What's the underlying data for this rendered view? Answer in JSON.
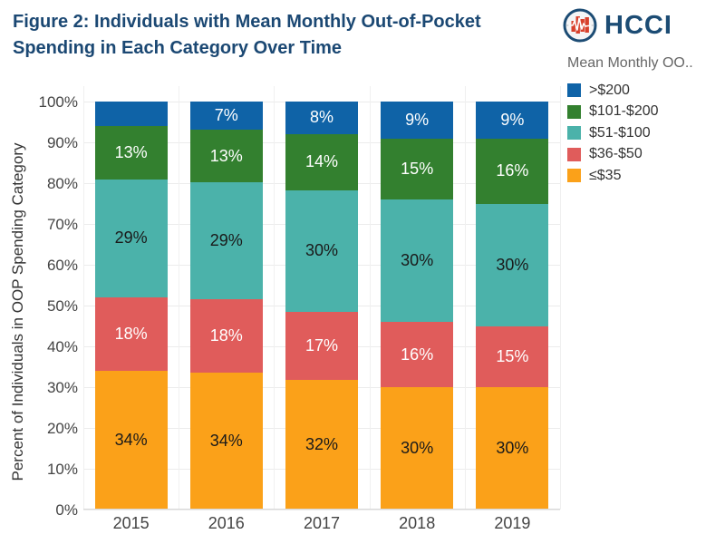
{
  "header": {
    "title_line1": "Figure 2: Individuals with Mean Monthly Out-of-Pocket",
    "title_line2": "Spending in Each Category Over Time",
    "logo_text": "HCCI"
  },
  "legend": {
    "title": "Mean Monthly OO..",
    "items": [
      {
        "label": ">$200",
        "color": "#0F63A7"
      },
      {
        "label": "$101-$200",
        "color": "#33802F"
      },
      {
        "label": "$51-$100",
        "color": "#4BB2AA"
      },
      {
        "label": "$36-$50",
        "color": "#E05C5B"
      },
      {
        "label": "≤$35",
        "color": "#FBA119"
      }
    ]
  },
  "chart_data": {
    "type": "bar",
    "stacked": true,
    "title": "Figure 2: Individuals with Mean Monthly Out-of-Pocket Spending in Each Category Over Time",
    "categories": [
      "2015",
      "2016",
      "2017",
      "2018",
      "2019"
    ],
    "series": [
      {
        "name": "≤$35",
        "color": "#FBA119",
        "label_color": "#1a1a1a",
        "values": [
          34,
          34,
          32,
          30,
          30
        ],
        "labels": [
          "34%",
          "34%",
          "32%",
          "30%",
          "30%"
        ]
      },
      {
        "name": "$36-$50",
        "color": "#E05C5B",
        "label_color": "#ffffff",
        "values": [
          18,
          18,
          17,
          16,
          15
        ],
        "labels": [
          "18%",
          "18%",
          "17%",
          "16%",
          "15%"
        ]
      },
      {
        "name": "$51-$100",
        "color": "#4BB2AA",
        "label_color": "#1a1a1a",
        "values": [
          29,
          29,
          30,
          30,
          30
        ],
        "labels": [
          "29%",
          "29%",
          "30%",
          "30%",
          "30%"
        ]
      },
      {
        "name": "$101-$200",
        "color": "#33802F",
        "label_color": "#ffffff",
        "values": [
          13,
          13,
          14,
          15,
          16
        ],
        "labels": [
          "13%",
          "13%",
          "14%",
          "15%",
          "16%"
        ]
      },
      {
        "name": ">$200",
        "color": "#0F63A7",
        "label_color": "#ffffff",
        "values": [
          6,
          7,
          8,
          9,
          9
        ],
        "labels": [
          "",
          "7%",
          "8%",
          "9%",
          "9%"
        ]
      }
    ],
    "xlabel": "",
    "ylabel": "Percent of Individuals in OOP Spending Category",
    "y_ticks": [
      "100%",
      "90%",
      "80%",
      "70%",
      "60%",
      "50%",
      "40%",
      "30%",
      "20%",
      "10%",
      "0%"
    ],
    "ylim": [
      0,
      100
    ],
    "grid": true,
    "legend_position": "right",
    "legend_title": "Mean Monthly OO.."
  }
}
